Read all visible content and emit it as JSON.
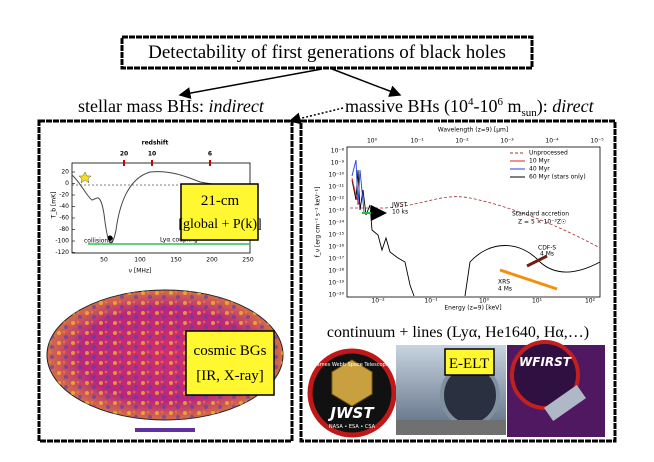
{
  "title": "Detectability of first generations of black holes",
  "left": {
    "label": {
      "text": "stellar mass BHs: ",
      "emphasis": "indirect"
    },
    "plot": {
      "redshift_label": "redshift",
      "redshift_ticks": [
        "20",
        "10",
        "6"
      ],
      "yticks": [
        "20",
        "0",
        "-20",
        "-40",
        "-60",
        "-80",
        "-100",
        "-120"
      ],
      "xticks": [
        "50",
        "100",
        "150",
        "200",
        "250"
      ],
      "xlabel": "ν [MHz]",
      "ylabel": "T_b [mK]",
      "collisional": "collisional",
      "lya": "Lyα coupling"
    },
    "box21": [
      "21-cm",
      "[global + P(k)]"
    ],
    "boxBG": [
      "cosmic BGs",
      "[IR, X-ray]"
    ]
  },
  "right": {
    "label": {
      "pre": "massive BHs (10",
      "sup1": "4",
      "mid": "-10",
      "sup2": "6",
      "m": " m",
      "sub": "sun",
      "post": "): ",
      "emphasis": "direct"
    },
    "plot": {
      "top_label": "Wavelength (z=9) [μm]",
      "top_ticks": [
        "10⁰",
        "10⁻¹",
        "10⁻²",
        "10⁻³",
        "10⁻⁴",
        "10⁻⁵"
      ],
      "yticks": [
        "10⁻⁸",
        "10⁻⁹",
        "10⁻¹⁰",
        "10⁻¹¹",
        "10⁻¹²",
        "10⁻¹³",
        "10⁻¹⁴",
        "10⁻¹⁵",
        "10⁻¹⁶",
        "10⁻¹⁷",
        "10⁻¹⁸",
        "10⁻¹⁹",
        "10⁻²⁰"
      ],
      "xticks": [
        "10⁻²",
        "10⁻¹",
        "10⁰",
        "10¹",
        "10²"
      ],
      "xlabel": "Energy (z=9) [keV]",
      "ylabel": "f_ν [erg cm⁻² s⁻¹ keV⁻¹]",
      "legend": [
        "Unprocessed",
        "10 Myr",
        "40 Myr",
        "60 Myr (stars only)"
      ],
      "accretion": [
        "Standard accretion",
        "Z = 5 × 10⁻³Z☉"
      ],
      "jwst": [
        "JWST",
        "10 ks"
      ],
      "cdfs": [
        "CDF-S",
        "4 Ms"
      ],
      "xrs": [
        "XRS",
        "4 Ms"
      ]
    },
    "caption": "continuum + lines (Lyα, He1640, Hα,…)",
    "logos": {
      "jwst_top": "James Webb Space Telescope",
      "jwst": "JWST",
      "jwst_bottom": "NASA • ESA • CSA",
      "eelt": "E-ELT",
      "wfirst": "WFIRST"
    }
  }
}
